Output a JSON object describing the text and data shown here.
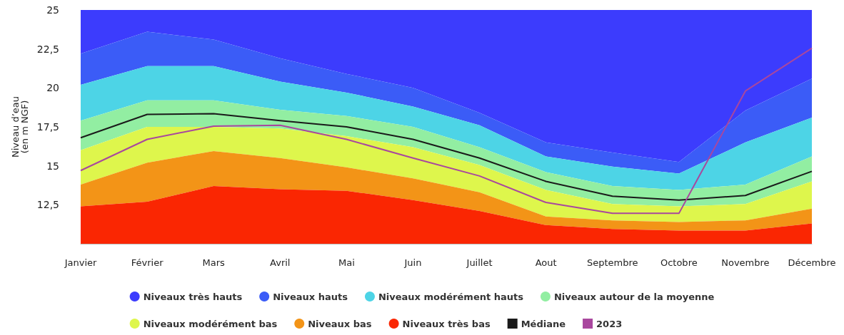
{
  "chart_data": {
    "type": "area",
    "ylabel": "Niveau d’eau\n(en m NGF)",
    "categories": [
      "Janvier",
      "Février",
      "Mars",
      "Avril",
      "Mai",
      "Juin",
      "Juillet",
      "Aout",
      "Septembre",
      "Octobre",
      "Novembre",
      "Décembre"
    ],
    "series": [
      {
        "name": "Niveaux très hauts",
        "color": "#3c3cfd",
        "values": [
          25,
          25,
          25,
          25,
          25,
          25,
          25,
          25,
          25,
          25,
          25,
          25
        ]
      },
      {
        "name": "Niveaux hauts",
        "color": "#3b5cf7",
        "values": [
          22.2,
          23.6,
          23.1,
          21.9,
          20.9,
          20.0,
          18.4,
          16.5,
          15.85,
          15.25,
          18.55,
          20.6
        ]
      },
      {
        "name": "Niveaux modérément hauts",
        "color": "#4dd4e6",
        "values": [
          20.2,
          21.4,
          21.4,
          20.4,
          19.7,
          18.8,
          17.6,
          15.6,
          14.95,
          14.5,
          16.5,
          18.1
        ]
      },
      {
        "name": "Niveaux autour de la moyenne",
        "color": "#92eea2",
        "values": [
          17.9,
          19.2,
          19.2,
          18.6,
          18.2,
          17.5,
          16.2,
          14.6,
          13.7,
          13.45,
          13.8,
          15.6
        ]
      },
      {
        "name": "Niveaux modérément bas",
        "color": "#def64c",
        "values": [
          16.0,
          17.5,
          17.5,
          17.4,
          16.9,
          16.2,
          15.05,
          13.45,
          12.55,
          12.4,
          12.55,
          14.0
        ]
      },
      {
        "name": "Niveaux bas",
        "color": "#f39417",
        "values": [
          13.8,
          15.2,
          15.95,
          15.5,
          14.9,
          14.2,
          13.3,
          11.75,
          11.5,
          11.4,
          11.5,
          12.25
        ]
      },
      {
        "name": "Niveaux très bas",
        "color": "#fa2602",
        "values": [
          12.4,
          12.7,
          13.7,
          13.5,
          13.4,
          12.8,
          12.1,
          11.2,
          10.95,
          10.85,
          10.85,
          11.3
        ]
      },
      {
        "name": "Médiane",
        "type": "line",
        "color": "#1a1a1a",
        "values": [
          16.8,
          18.3,
          18.35,
          17.9,
          17.5,
          16.7,
          15.5,
          14.0,
          13.05,
          12.8,
          13.1,
          14.65
        ]
      },
      {
        "name": "2023",
        "type": "line",
        "color": "#a9479e",
        "values": [
          14.7,
          16.7,
          17.55,
          17.6,
          16.7,
          15.5,
          14.35,
          12.65,
          11.95,
          11.95,
          19.8,
          22.55
        ]
      }
    ],
    "ylim": [
      10,
      25
    ],
    "yticks": [
      {
        "value": 12.5,
        "label": "12,5"
      },
      15,
      {
        "value": 17.5,
        "label": "17,5"
      },
      20,
      {
        "value": 22.5,
        "label": "22,5"
      },
      25
    ],
    "legend": "bottom"
  }
}
